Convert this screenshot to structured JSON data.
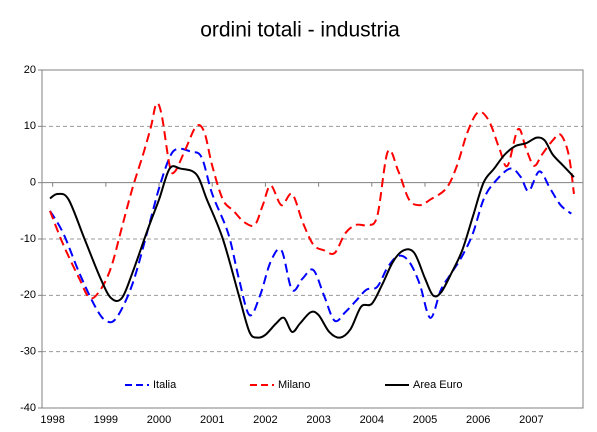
{
  "chart_data": {
    "type": "line",
    "title": "ordini totali - industria",
    "xlim": [
      1997.8,
      2007.97
    ],
    "xticks": [
      1998,
      1999,
      2000,
      2001,
      2002,
      2003,
      2004,
      2005,
      2006,
      2007
    ],
    "ylim": [
      -40,
      20
    ],
    "yticks": [
      -40,
      -30,
      -20,
      -10,
      0,
      10,
      20
    ],
    "grid": true,
    "legend": "bottom",
    "series": [
      {
        "name": "Italia",
        "color": "#0000ff",
        "dash": true,
        "x": [
          1997.95,
          1998.2,
          1998.5,
          1998.8,
          1999.0,
          1999.2,
          1999.5,
          1999.8,
          2000.0,
          2000.2,
          2000.35,
          2000.6,
          2000.8,
          2001.0,
          2001.3,
          2001.5,
          2001.7,
          2001.9,
          2002.1,
          2002.3,
          2002.5,
          2002.7,
          2002.9,
          2003.1,
          2003.3,
          2003.5,
          2003.7,
          2003.9,
          2004.1,
          2004.3,
          2004.5,
          2004.7,
          2004.9,
          2005.1,
          2005.3,
          2005.5,
          2005.7,
          2005.9,
          2006.1,
          2006.3,
          2006.6,
          2006.8,
          2006.95,
          2007.15,
          2007.35,
          2007.55,
          2007.75
        ],
        "values": [
          -5,
          -9,
          -16,
          -22,
          -24.5,
          -24,
          -18,
          -8,
          -1,
          4.5,
          6,
          5.5,
          4.5,
          -2,
          -9,
          -17,
          -23.5,
          -20,
          -14,
          -12,
          -19,
          -17,
          -15.5,
          -20,
          -24.5,
          -23,
          -21,
          -19,
          -18.5,
          -15,
          -13,
          -14,
          -18,
          -24,
          -19,
          -16,
          -13,
          -9,
          -3,
          0,
          2.5,
          1,
          -1.5,
          2,
          -1,
          -4,
          -5.5
        ]
      },
      {
        "name": "Milano",
        "color": "#ff0000",
        "dash": true,
        "x": [
          1997.95,
          1998.2,
          1998.5,
          1998.7,
          1998.9,
          1999.1,
          1999.3,
          1999.5,
          1999.7,
          1999.85,
          1999.95,
          2000.05,
          2000.2,
          2000.3,
          2000.5,
          2000.7,
          2000.85,
          2001.0,
          2001.2,
          2001.4,
          2001.6,
          2001.8,
          2001.95,
          2002.1,
          2002.3,
          2002.5,
          2002.7,
          2002.9,
          2003.1,
          2003.3,
          2003.5,
          2003.7,
          2003.9,
          2004.1,
          2004.3,
          2004.5,
          2004.7,
          2004.9,
          2005.1,
          2005.4,
          2005.6,
          2005.8,
          2006.0,
          2006.2,
          2006.4,
          2006.55,
          2006.75,
          2006.9,
          2007.05,
          2007.2,
          2007.4,
          2007.55,
          2007.7,
          2007.8
        ],
        "values": [
          -5,
          -11,
          -17,
          -20.5,
          -19,
          -15,
          -8,
          -1,
          5,
          10,
          14,
          12,
          3,
          2,
          6,
          10,
          9,
          3,
          -3,
          -5,
          -7,
          -7.5,
          -4,
          -0.5,
          -4,
          -2,
          -7,
          -11,
          -12,
          -12.5,
          -9,
          -7.5,
          -7.5,
          -6,
          5.5,
          2,
          -3,
          -4,
          -3,
          -1,
          3,
          9,
          12.5,
          11,
          6,
          3,
          9.5,
          6,
          3,
          5,
          7.5,
          8.5,
          5,
          -2
        ]
      },
      {
        "name": "Area Euro",
        "color": "#000000",
        "dash": false,
        "x": [
          1997.95,
          1998.1,
          1998.3,
          1998.6,
          1998.9,
          1999.1,
          1999.3,
          1999.5,
          1999.8,
          2000.0,
          2000.2,
          2000.4,
          2000.7,
          2000.9,
          2001.2,
          2001.5,
          2001.7,
          2001.85,
          2002.0,
          2002.2,
          2002.35,
          2002.5,
          2002.65,
          2002.85,
          2003.0,
          2003.2,
          2003.4,
          2003.6,
          2003.8,
          2004.0,
          2004.2,
          2004.4,
          2004.6,
          2004.8,
          2005.0,
          2005.15,
          2005.3,
          2005.5,
          2005.7,
          2005.9,
          2006.1,
          2006.3,
          2006.5,
          2006.7,
          2006.9,
          2007.1,
          2007.25,
          2007.4,
          2007.6,
          2007.8
        ],
        "values": [
          -2.8,
          -2,
          -3,
          -10,
          -17,
          -20.5,
          -20.5,
          -16,
          -8,
          -3,
          2.5,
          2.5,
          1.5,
          -3,
          -10,
          -20,
          -26.5,
          -27.5,
          -27,
          -25,
          -24,
          -26.5,
          -25,
          -23,
          -23.5,
          -26.5,
          -27.5,
          -26,
          -22,
          -21.5,
          -18,
          -14,
          -12,
          -12.5,
          -17,
          -20,
          -19.5,
          -16,
          -12,
          -6,
          0,
          2.5,
          5,
          6.5,
          7,
          8,
          7.5,
          5,
          3,
          1
        ]
      }
    ]
  }
}
